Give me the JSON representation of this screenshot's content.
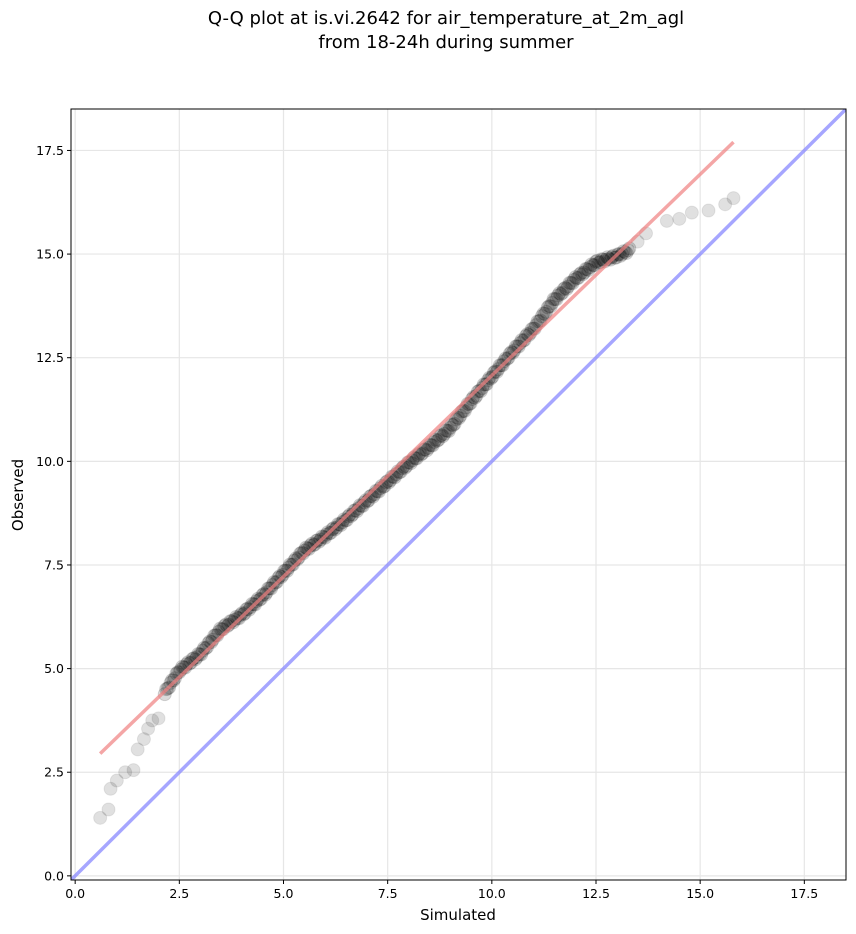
{
  "chart_data": {
    "type": "scatter",
    "title": "Q-Q plot at is.vi.2642 for air_temperature_at_2m_agl",
    "subtitle": "from 18-24h during summer",
    "xlabel": "Simulated",
    "ylabel": "Observed",
    "xlim": [
      -0.1,
      18.5
    ],
    "ylim": [
      -0.1,
      18.5
    ],
    "xticks": [
      "0.0",
      "2.5",
      "5.0",
      "7.5",
      "10.0",
      "12.5",
      "15.0",
      "17.5"
    ],
    "yticks": [
      "0.0",
      "2.5",
      "5.0",
      "7.5",
      "10.0",
      "12.5",
      "15.0",
      "17.5"
    ],
    "tick_values": [
      0,
      2.5,
      5,
      7.5,
      10,
      12.5,
      15,
      17.5
    ],
    "grid": true,
    "colors": {
      "points": "#000000",
      "fit_line": "#f08080",
      "identity_line": "#8888ff"
    },
    "series": [
      {
        "type": "quantile-points",
        "anchors": [
          [
            0.6,
            1.4
          ],
          [
            0.8,
            1.6
          ],
          [
            0.9,
            2.1
          ],
          [
            1.3,
            2.6
          ],
          [
            1.5,
            3.0
          ],
          [
            1.9,
            3.8
          ],
          [
            2.2,
            4.5
          ],
          [
            2.5,
            4.95
          ],
          [
            3.0,
            5.35
          ],
          [
            3.5,
            5.95
          ],
          [
            4.0,
            6.3
          ],
          [
            4.5,
            6.75
          ],
          [
            5.0,
            7.3
          ],
          [
            5.5,
            7.85
          ],
          [
            6.0,
            8.2
          ],
          [
            6.5,
            8.6
          ],
          [
            7.0,
            9.05
          ],
          [
            7.5,
            9.5
          ],
          [
            8.0,
            9.95
          ],
          [
            8.5,
            10.35
          ],
          [
            9.0,
            10.8
          ],
          [
            9.5,
            11.45
          ],
          [
            10.0,
            12.05
          ],
          [
            10.5,
            12.65
          ],
          [
            11.0,
            13.2
          ],
          [
            11.5,
            13.9
          ],
          [
            12.0,
            14.4
          ],
          [
            12.5,
            14.8
          ],
          [
            13.0,
            14.95
          ],
          [
            13.5,
            15.2
          ],
          [
            14.0,
            15.6
          ],
          [
            14.5,
            15.9
          ],
          [
            15.0,
            16.1
          ],
          [
            15.8,
            16.4
          ]
        ],
        "outliers": [
          [
            0.6,
            1.4
          ],
          [
            0.8,
            1.6
          ],
          [
            0.85,
            2.1
          ],
          [
            1.0,
            2.3
          ],
          [
            1.2,
            2.5
          ],
          [
            1.4,
            2.55
          ],
          [
            1.5,
            3.05
          ],
          [
            1.65,
            3.3
          ],
          [
            1.75,
            3.55
          ],
          [
            1.85,
            3.75
          ],
          [
            2.0,
            3.8
          ],
          [
            13.5,
            15.3
          ],
          [
            13.7,
            15.5
          ],
          [
            14.2,
            15.8
          ],
          [
            14.5,
            15.85
          ],
          [
            14.8,
            16.0
          ],
          [
            15.2,
            16.05
          ],
          [
            15.6,
            16.2
          ],
          [
            15.8,
            16.35
          ]
        ]
      },
      {
        "type": "line",
        "role": "fit",
        "x": [
          0.6,
          15.8
        ],
        "y": [
          2.95,
          17.7
        ]
      },
      {
        "type": "line",
        "role": "identity",
        "x": [
          -0.1,
          18.5
        ],
        "y": [
          -0.1,
          18.5
        ]
      }
    ]
  }
}
